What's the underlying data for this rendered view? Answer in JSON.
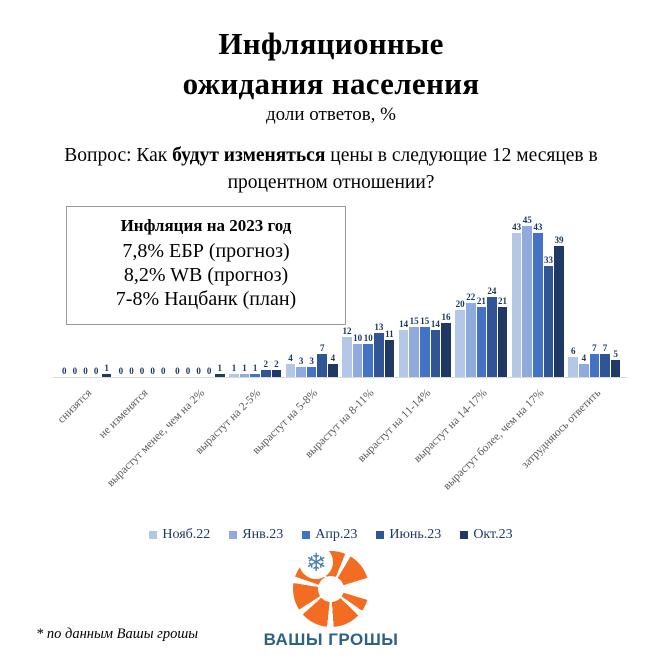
{
  "header": {
    "title_line1": "Инфляционные",
    "title_line2": "ожидания населения",
    "subtitle": "доли ответов, %",
    "question_prefix": "Вопрос: Как ",
    "question_bold": "будут изменяться",
    "question_suffix": " цены в следующие 12 месяцев в процентном отношении?"
  },
  "info_box": {
    "title": "Инфляция на 2023 год",
    "lines": [
      "7,8% ЕБР (прогноз)",
      "8,2% WB (прогноз)",
      "7-8% Нацбанк (план)"
    ]
  },
  "chart_data": {
    "type": "bar",
    "title": "Инфляционные ожидания населения",
    "subtitle": "доли ответов, %",
    "xlabel": "",
    "ylabel": "доли ответов, %",
    "ylim": [
      0,
      48
    ],
    "grid": false,
    "legend_position": "bottom",
    "data_labels": true,
    "categories": [
      "снизятся",
      "не изменятся",
      "вырастут менее, чем на 2%",
      "вырастут на 2-5%",
      "вырастут на 5-8%",
      "вырастут на 8-11%",
      "вырастут на 11-14%",
      "вырастут на 14-17%",
      "вырастут более, чем на 17%",
      "затрудняюсь ответить"
    ],
    "series": [
      {
        "name": "Нояб.22",
        "color": "#b4c7e7",
        "values": [
          0,
          0,
          0,
          1,
          4,
          12,
          14,
          20,
          43,
          6
        ]
      },
      {
        "name": "Янв.23",
        "color": "#8faadc",
        "values": [
          0,
          0,
          0,
          1,
          3,
          10,
          15,
          22,
          45,
          4
        ]
      },
      {
        "name": "Апр.23",
        "color": "#4472c4",
        "values": [
          0,
          0,
          0,
          1,
          3,
          10,
          15,
          21,
          43,
          7
        ]
      },
      {
        "name": "Июнь.23",
        "color": "#2f5597",
        "values": [
          0,
          0,
          0,
          2,
          7,
          13,
          14,
          24,
          33,
          7
        ]
      },
      {
        "name": "Окт.23",
        "color": "#203864",
        "values": [
          1,
          0,
          1,
          2,
          4,
          11,
          16,
          21,
          39,
          5
        ]
      }
    ]
  },
  "colors": {
    "axis_line": "#d9d9d9",
    "data_label": "#17365d",
    "category_label": "#595959",
    "legend_text": "#1f3864",
    "logo_orange": "#f26c21",
    "logo_blue": "#2d6187"
  },
  "footer": {
    "footnote": "* по данным Вашы грошы",
    "logo_text": "ВАШЫ ГРОШЫ",
    "snowflake_icon": "❄"
  }
}
